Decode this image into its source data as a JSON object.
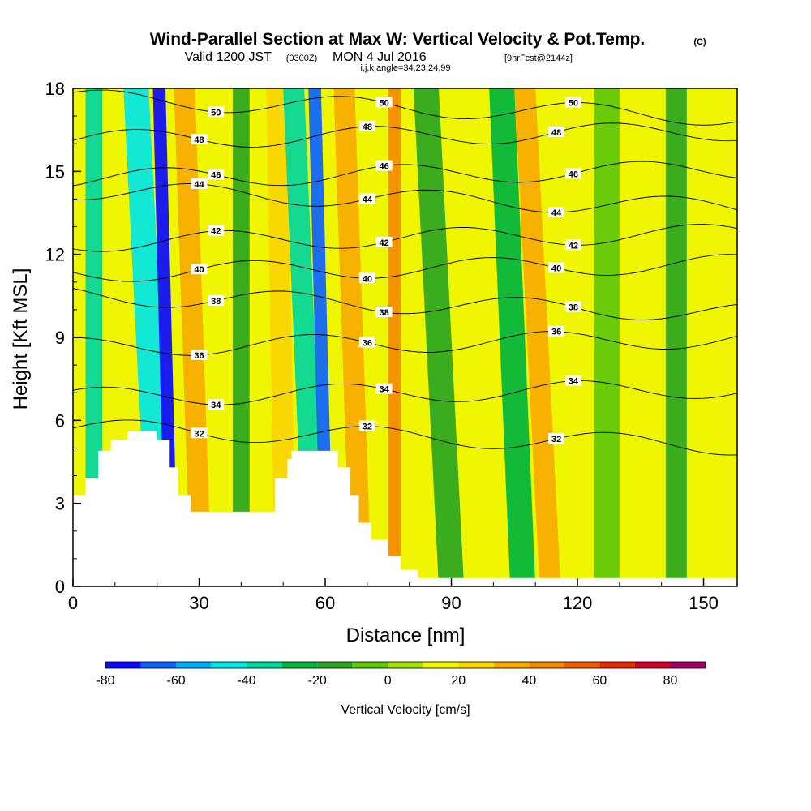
{
  "title": {
    "main": "Wind-Parallel Section at Max W: Vertical Velocity & Pot.Temp.",
    "copyright": "(C)",
    "valid_prefix": "Valid 1200 JST",
    "valid_utc": "(0300Z)",
    "valid_date": "MON 4 Jul 2016",
    "forecast": "[9hrFcst@2144z]",
    "params": "i,j,k,angle=34,23,24,99"
  },
  "chart_data": {
    "type": "heatmap",
    "xlabel": "Distance [nm]",
    "ylabel": "Height [Kft MSL]",
    "xlim": [
      0,
      158
    ],
    "ylim": [
      0,
      18
    ],
    "x_ticks": [
      "0",
      "30",
      "60",
      "90",
      "120",
      "150"
    ],
    "y_ticks": [
      "0",
      "3",
      "6",
      "9",
      "12",
      "15",
      "18"
    ],
    "x_tick_values": [
      0,
      30,
      60,
      90,
      120,
      150
    ],
    "y_tick_values": [
      0,
      3,
      6,
      9,
      12,
      15,
      18
    ],
    "colorbar": {
      "label": "Vertical Velocity [cm/s]",
      "bounds": [
        -80,
        -70,
        -60,
        -50,
        -40,
        -30,
        -20,
        -10,
        0,
        10,
        20,
        30,
        40,
        50,
        60,
        70,
        80,
        90
      ],
      "colors": [
        "#0a0aff",
        "#0b62ff",
        "#00aaff",
        "#00e6e6",
        "#00d79c",
        "#00b43c",
        "#2ba520",
        "#5ec80a",
        "#a6e00a",
        "#f0f500",
        "#fad500",
        "#f7ab00",
        "#f58a00",
        "#f05d00",
        "#eb2a00",
        "#d2002d",
        "#a0005f",
        "#6e0091"
      ],
      "tick_labels": [
        "-80",
        "-60",
        "-40",
        "-20",
        "0",
        "20",
        "40",
        "60",
        "80"
      ],
      "tick_values": [
        -80,
        -60,
        -40,
        -20,
        0,
        20,
        40,
        60,
        80
      ]
    },
    "terrain_kft": [
      [
        0,
        3.3
      ],
      [
        3,
        3.9
      ],
      [
        6,
        4.9
      ],
      [
        9,
        5.3
      ],
      [
        13,
        5.6
      ],
      [
        19,
        5.6
      ],
      [
        20,
        5.3
      ],
      [
        23,
        4.3
      ],
      [
        25,
        3.3
      ],
      [
        28,
        2.7
      ],
      [
        45,
        2.7
      ],
      [
        48,
        3.9
      ],
      [
        51,
        4.6
      ],
      [
        52,
        4.9
      ],
      [
        61,
        4.9
      ],
      [
        63,
        4.3
      ],
      [
        66,
        3.3
      ],
      [
        68,
        2.3
      ],
      [
        71,
        1.7
      ],
      [
        75,
        1.1
      ],
      [
        78,
        0.6
      ],
      [
        82,
        0.3
      ],
      [
        158,
        0.3
      ]
    ],
    "velocity_bands": [
      {
        "x": 3,
        "w": 4,
        "top_shift": 0,
        "value": -35
      },
      {
        "x": 10,
        "w": 4,
        "top_shift": 0,
        "value": 15
      },
      {
        "x": 18,
        "w": 6,
        "top_shift": 6,
        "value": -45
      },
      {
        "x": 22,
        "w": 3,
        "top_shift": 3,
        "value": -75
      },
      {
        "x": 28,
        "w": 5,
        "top_shift": 4,
        "value": 35
      },
      {
        "x": 38,
        "w": 4,
        "top_shift": 0,
        "value": -15
      },
      {
        "x": 48,
        "w": 5,
        "top_shift": 2,
        "value": 25
      },
      {
        "x": 55,
        "w": 5,
        "top_shift": 5,
        "value": -40
      },
      {
        "x": 59,
        "w": 3,
        "top_shift": 3,
        "value": -65
      },
      {
        "x": 66,
        "w": 5,
        "top_shift": 4,
        "value": 30
      },
      {
        "x": 75,
        "w": 3,
        "top_shift": 0,
        "value": 45
      },
      {
        "x": 87,
        "w": 6,
        "top_shift": 6,
        "value": -15
      },
      {
        "x": 104,
        "w": 6,
        "top_shift": 5,
        "value": -25
      },
      {
        "x": 111,
        "w": 5,
        "top_shift": 6,
        "value": 35
      },
      {
        "x": 124,
        "w": 6,
        "top_shift": 0,
        "value": -10
      },
      {
        "x": 141,
        "w": 5,
        "top_shift": 0,
        "value": -12
      }
    ],
    "isentropes": [
      {
        "label": "32",
        "y0": 5.4
      },
      {
        "label": "34",
        "y0": 7.0
      },
      {
        "label": "36",
        "y0": 8.8
      },
      {
        "label": "38",
        "y0": 10.2
      },
      {
        "label": "40",
        "y0": 11.5
      },
      {
        "label": "42",
        "y0": 12.6
      },
      {
        "label": "44",
        "y0": 14.0
      },
      {
        "label": "46",
        "y0": 14.9
      },
      {
        "label": "48",
        "y0": 16.3
      },
      {
        "label": "50",
        "y0": 17.3
      }
    ]
  }
}
